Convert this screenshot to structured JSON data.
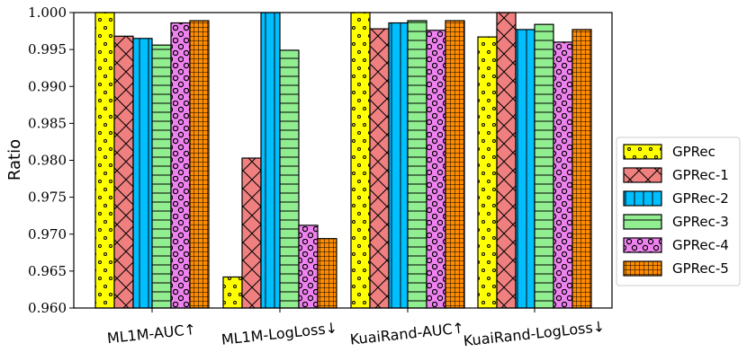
{
  "chart_data": {
    "type": "bar",
    "ylabel": "Ratio",
    "ylim": [
      0.96,
      1.0
    ],
    "yticks": [
      "0.960",
      "0.965",
      "0.970",
      "0.975",
      "0.980",
      "0.985",
      "0.990",
      "0.995",
      "1.000"
    ],
    "categories": [
      "ML1M-AUC↑",
      "ML1M-LogLoss↓",
      "KuaiRand-AUC↑",
      "KuaiRand-LogLoss↓"
    ],
    "legend_position": "center-right",
    "series": [
      {
        "name": "GPRec",
        "color": "#ffff00",
        "pattern": "dots",
        "values": [
          1.0,
          0.9642,
          1.0,
          0.9967
        ]
      },
      {
        "name": "GPRec-1",
        "color": "#f08080",
        "pattern": "cross-diag",
        "values": [
          0.9968,
          0.9803,
          0.9978,
          1.0
        ]
      },
      {
        "name": "GPRec-2",
        "color": "#00bfff",
        "pattern": "vertical",
        "values": [
          0.9965,
          1.0,
          0.9986,
          0.9977
        ]
      },
      {
        "name": "GPRec-3",
        "color": "#90ee90",
        "pattern": "horizontal",
        "values": [
          0.9956,
          0.9949,
          0.9989,
          0.9984
        ]
      },
      {
        "name": "GPRec-4",
        "color": "#ee82ee",
        "pattern": "circles",
        "values": [
          0.9986,
          0.9712,
          0.9976,
          0.996
        ]
      },
      {
        "name": "GPRec-5",
        "color": "#ff8c00",
        "pattern": "grid",
        "values": [
          0.9989,
          0.9694,
          0.9989,
          0.9977
        ]
      }
    ]
  }
}
